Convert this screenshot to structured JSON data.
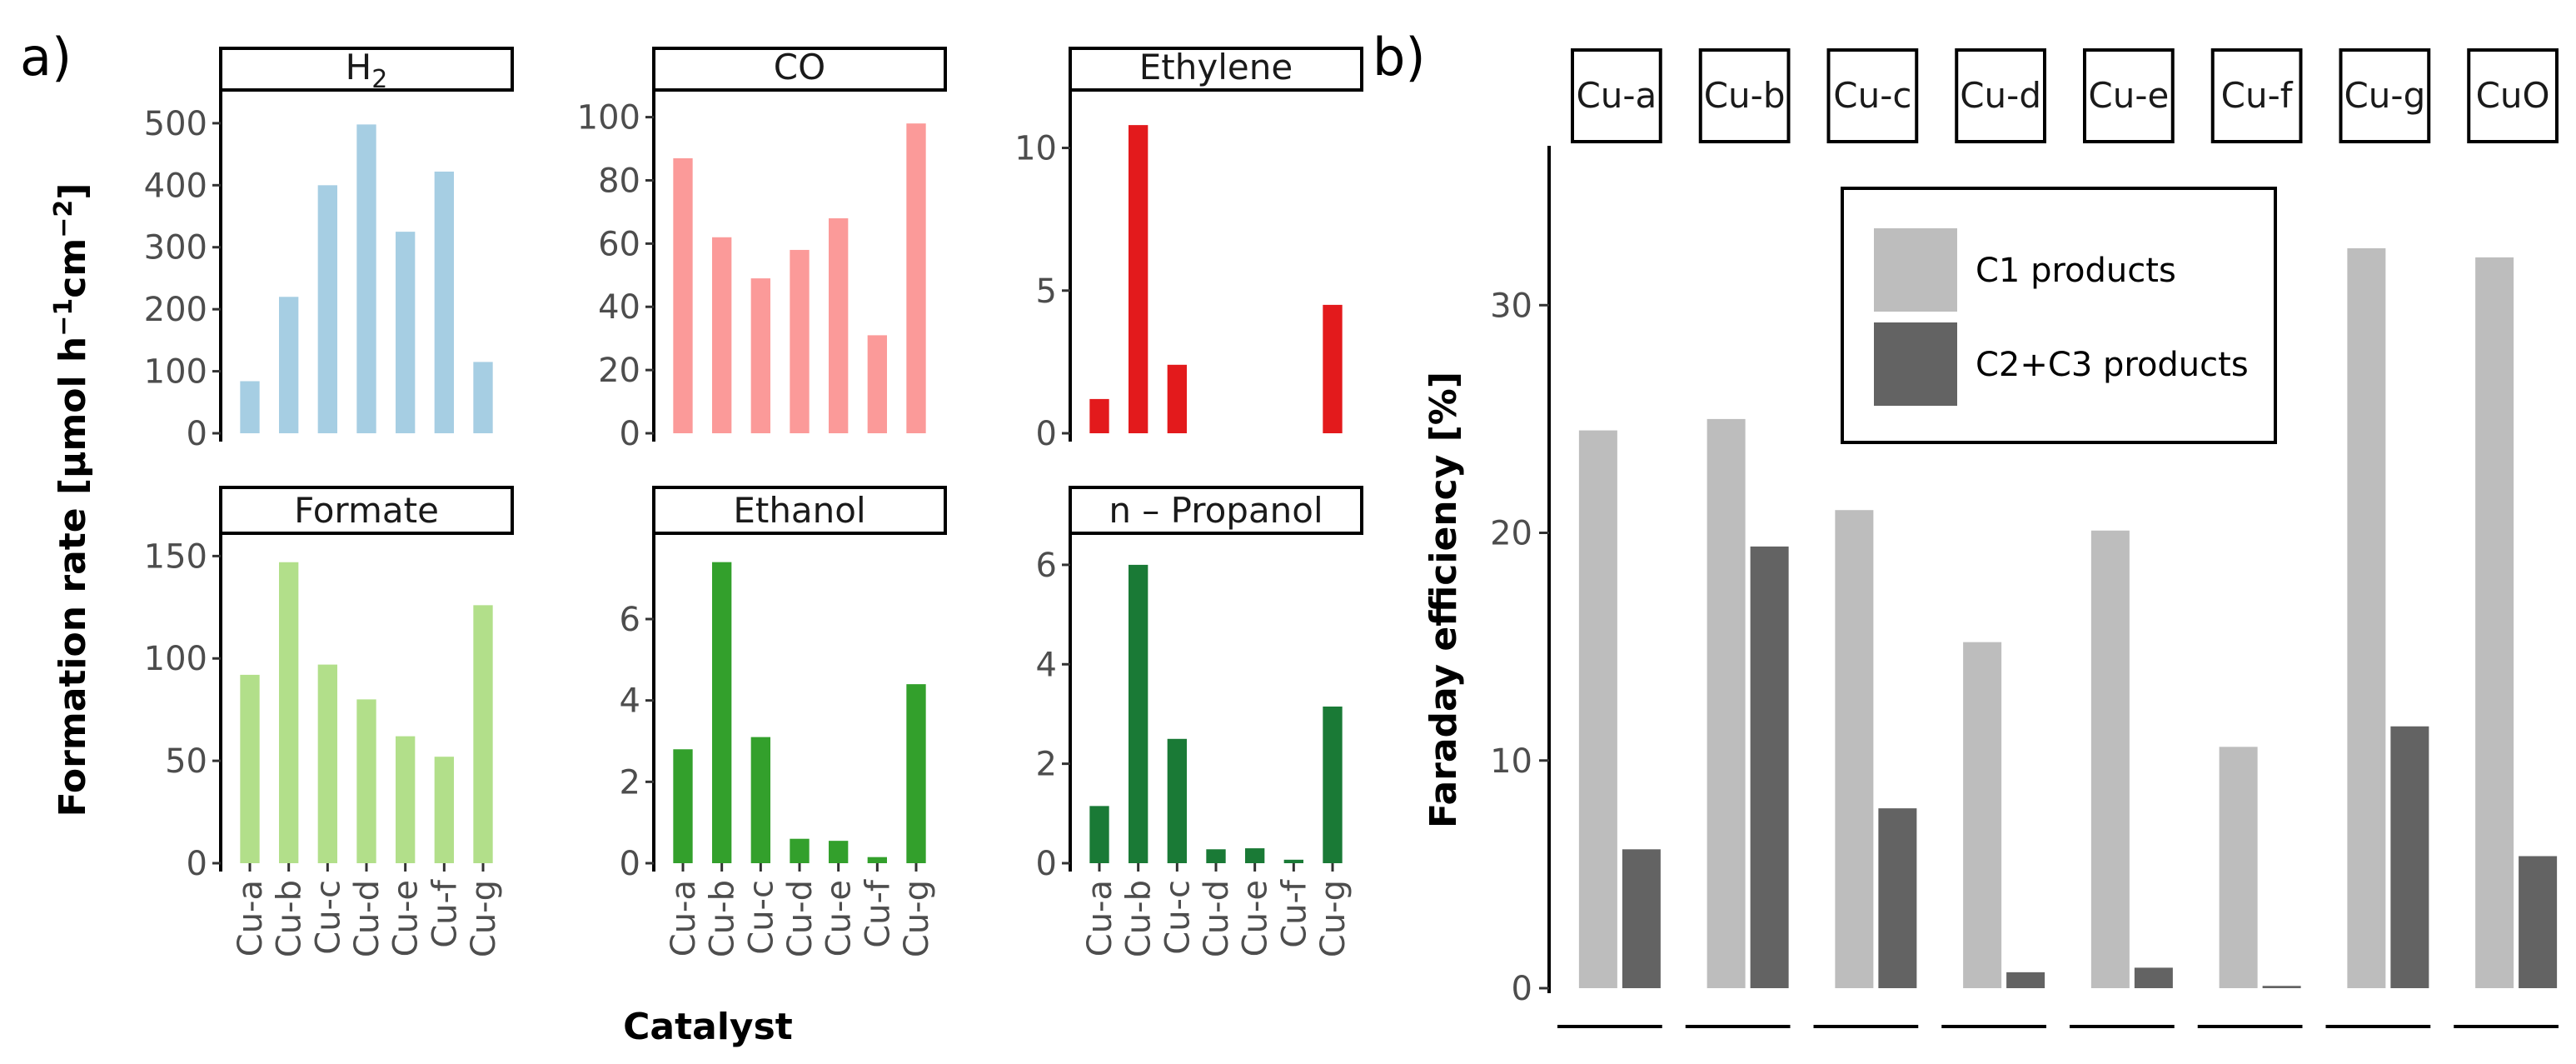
{
  "panel_a_label": "a)",
  "panel_b_label": "b)",
  "chart_data": [
    {
      "type": "bar",
      "panel": "a",
      "ylabel": "Formation rate [µmol h⁻¹cm⁻²]",
      "ylabel_parts": {
        "main": "Formation rate [µmol h",
        "sup1": "−1",
        "mid": "cm",
        "sup2": "−2",
        "end": "]"
      },
      "xlabel": "Catalyst",
      "categories": [
        "Cu-a",
        "Cu-b",
        "Cu-c",
        "Cu-d",
        "Cu-e",
        "Cu-f",
        "Cu-g"
      ],
      "facets": [
        {
          "title": "H2",
          "title_main": "H",
          "title_sub": "2",
          "color": "#a6cee3",
          "values": [
            84,
            220,
            400,
            498,
            325,
            422,
            115
          ],
          "ylim": [
            0,
            520
          ],
          "yticks": [
            0,
            100,
            200,
            300,
            400,
            500
          ]
        },
        {
          "title": "CO",
          "color": "#fb9a99",
          "values": [
            87,
            62,
            49,
            58,
            68,
            31,
            98
          ],
          "ylim": [
            0,
            102
          ],
          "yticks": [
            0,
            20,
            40,
            60,
            80,
            100
          ]
        },
        {
          "title": "Ethylene",
          "color": "#e31a1c",
          "values": [
            1.2,
            10.8,
            2.4,
            0,
            0,
            0,
            4.5
          ],
          "ylim": [
            0,
            11.3
          ],
          "yticks": [
            0,
            5,
            10
          ]
        },
        {
          "title": "Formate",
          "color": "#b2df8a",
          "values": [
            92,
            147,
            97,
            80,
            62,
            52,
            126
          ],
          "ylim": [
            0,
            153
          ],
          "yticks": [
            0,
            50,
            100,
            150
          ]
        },
        {
          "title": "Ethanol",
          "color": "#33a02c",
          "values": [
            2.8,
            7.4,
            3.1,
            0.6,
            0.55,
            0.15,
            4.4
          ],
          "ylim": [
            0,
            7.7
          ],
          "yticks": [
            0,
            2,
            4,
            6
          ]
        },
        {
          "title": "n – Propanol",
          "color": "#1a7a36",
          "values": [
            1.15,
            6.0,
            2.5,
            0.28,
            0.3,
            0.07,
            3.15
          ],
          "ylim": [
            0,
            6.3
          ],
          "yticks": [
            0,
            2,
            4,
            6
          ]
        }
      ]
    },
    {
      "type": "bar",
      "panel": "b",
      "ylabel": "Faraday efficiency [%]",
      "categories": [
        "Cu-a",
        "Cu-b",
        "Cu-c",
        "Cu-d",
        "Cu-e",
        "Cu-f",
        "Cu-g",
        "CuO"
      ],
      "ylim": [
        0,
        37
      ],
      "yticks": [
        0,
        10,
        20,
        30
      ],
      "legend_position": "top-right",
      "series": [
        {
          "name": "C1 products",
          "color": "#bdbdbd",
          "values": [
            24.5,
            25.0,
            21.0,
            15.2,
            20.1,
            10.6,
            32.5,
            32.1
          ]
        },
        {
          "name": "C2+C3 products",
          "color": "#636363",
          "values": [
            6.1,
            19.4,
            7.9,
            0.7,
            0.9,
            0.1,
            11.5,
            5.8
          ]
        }
      ]
    }
  ]
}
